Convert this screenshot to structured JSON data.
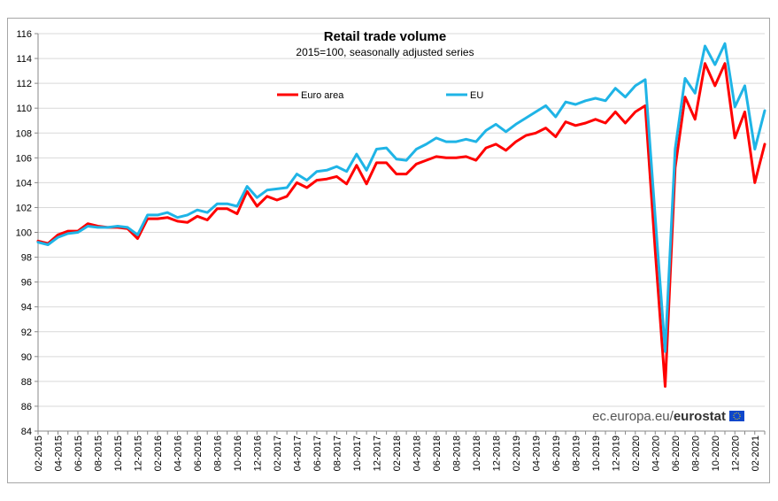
{
  "chart_data": {
    "type": "line",
    "title": "Retail trade volume",
    "subtitle": "2015=100, seasonally adjusted series",
    "xlabel": "",
    "ylabel": "",
    "ylim": [
      84,
      116
    ],
    "yticks": [
      84,
      86,
      88,
      90,
      92,
      94,
      96,
      98,
      100,
      102,
      104,
      106,
      108,
      110,
      112,
      114,
      116
    ],
    "grid": true,
    "legend_position": "top-center",
    "source_text_regular": "ec.europa.eu/",
    "source_text_bold": "eurostat",
    "x_labels": [
      "02-2015",
      "04-2015",
      "06-2015",
      "08-2015",
      "10-2015",
      "12-2015",
      "02-2016",
      "04-2016",
      "06-2016",
      "08-2016",
      "10-2016",
      "12-2016",
      "02-2017",
      "04-2017",
      "06-2017",
      "08-2017",
      "10-2017",
      "12-2017",
      "02-2018",
      "04-2018",
      "06-2018",
      "08-2018",
      "10-2018",
      "12-2018",
      "02-2019",
      "04-2019",
      "06-2019",
      "08-2019",
      "10-2019",
      "12-2019",
      "02-2020",
      "04-2020",
      "06-2020",
      "08-2020",
      "10-2020",
      "12-2020",
      "02-2021"
    ],
    "series": [
      {
        "name": "Euro area",
        "color": "#ff0000",
        "values": [
          99.3,
          99.1,
          99.8,
          100.1,
          100.1,
          100.7,
          100.5,
          100.4,
          100.4,
          100.3,
          99.5,
          101.1,
          101.1,
          101.2,
          100.9,
          100.8,
          101.3,
          101.0,
          101.9,
          101.9,
          101.5,
          103.3,
          102.1,
          102.9,
          102.6,
          102.9,
          104.0,
          103.6,
          104.2,
          104.3,
          104.5,
          103.9,
          105.4,
          103.9,
          105.6,
          105.6,
          104.7,
          104.7,
          105.5,
          105.8,
          106.1,
          106.0,
          106.0,
          106.1,
          105.8,
          106.8,
          107.1,
          106.6,
          107.3,
          107.8,
          108.0,
          108.4,
          107.7,
          108.9,
          108.6,
          108.8,
          109.1,
          108.8,
          109.7,
          108.8,
          109.7,
          110.2,
          98.5,
          87.6,
          105.2,
          110.9,
          109.1,
          113.6,
          111.8,
          113.6,
          107.6,
          109.7,
          104.0,
          107.1
        ]
      },
      {
        "name": "EU",
        "color": "#1fb4e6",
        "values": [
          99.2,
          99.0,
          99.6,
          99.9,
          100.0,
          100.5,
          100.4,
          100.4,
          100.5,
          100.4,
          99.8,
          101.4,
          101.4,
          101.6,
          101.2,
          101.4,
          101.8,
          101.6,
          102.3,
          102.3,
          102.1,
          103.7,
          102.8,
          103.4,
          103.5,
          103.6,
          104.7,
          104.2,
          104.9,
          105.0,
          105.3,
          104.9,
          106.3,
          105.0,
          106.7,
          106.8,
          105.9,
          105.8,
          106.7,
          107.1,
          107.6,
          107.3,
          107.3,
          107.5,
          107.3,
          108.2,
          108.7,
          108.1,
          108.7,
          109.2,
          109.7,
          110.2,
          109.3,
          110.5,
          110.3,
          110.6,
          110.8,
          110.6,
          111.6,
          110.9,
          111.8,
          112.3,
          101.2,
          90.4,
          106.7,
          112.4,
          111.2,
          115.0,
          113.5,
          115.2,
          110.1,
          111.8,
          106.7,
          109.8
        ]
      }
    ]
  }
}
